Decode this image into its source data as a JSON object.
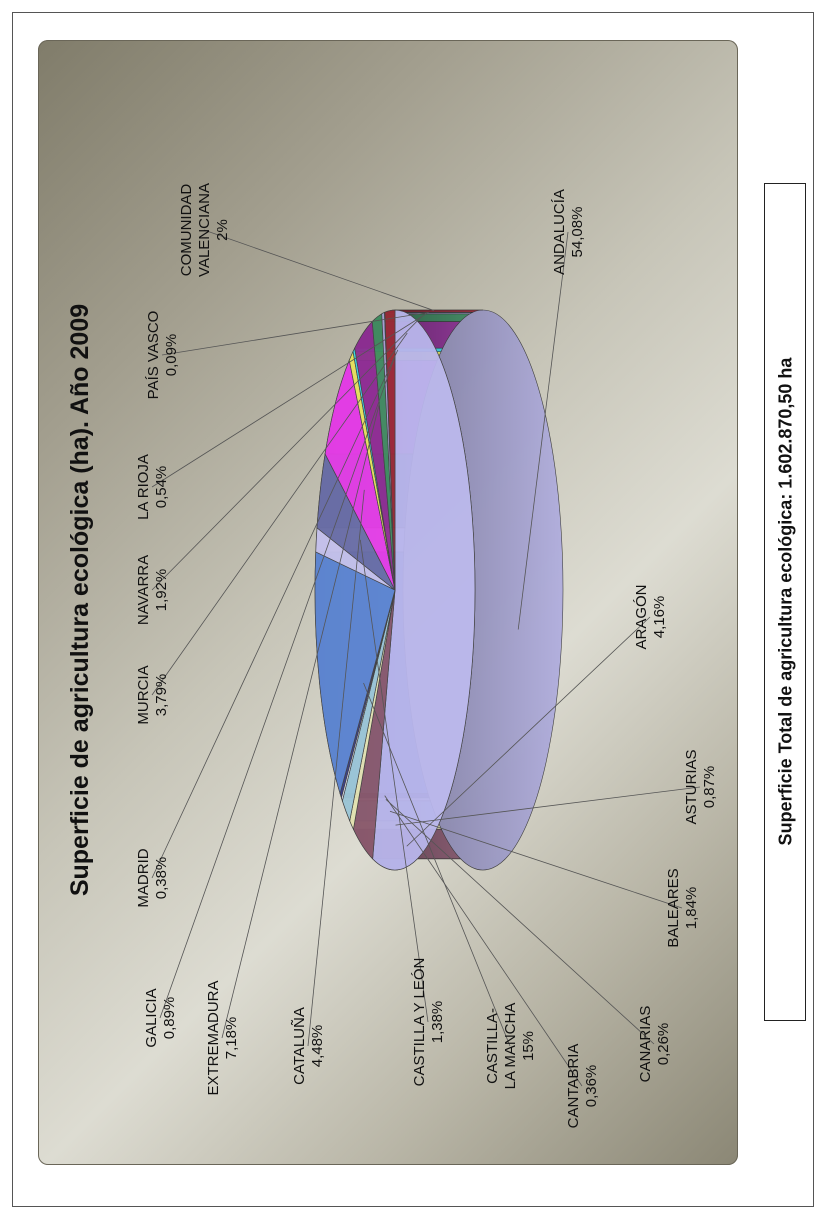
{
  "chart_data": {
    "type": "pie",
    "title": "Superficie de agricultura ecológica (ha). Año 2009",
    "slices": [
      {
        "label": [
          "ANDALUCÍA"
        ],
        "pct": "54,08%",
        "value": 54.08,
        "color": "#b9b6ec"
      },
      {
        "label": [
          "ARAGÓN"
        ],
        "pct": "4,16%",
        "value": 4.16,
        "color": "#8b5a6e"
      },
      {
        "label": [
          "ASTURIAS"
        ],
        "pct": "0,87%",
        "value": 0.87,
        "color": "#e8e6b4"
      },
      {
        "label": [
          "BALEARES"
        ],
        "pct": "1,84%",
        "value": 1.84,
        "color": "#9fc9d9"
      },
      {
        "label": [
          "CANARIAS"
        ],
        "pct": "0,26%",
        "value": 0.26,
        "color": "#e7e5f3"
      },
      {
        "label": [
          "CANTABRIA"
        ],
        "pct": "0,36%",
        "value": 0.36,
        "color": "#3b3f88"
      },
      {
        "label": [
          "CASTILLA-",
          "LA MANCHA"
        ],
        "pct": "15%",
        "value": 15.0,
        "color": "#5f87d3"
      },
      {
        "label": [
          "CASTILLA Y LEÓN"
        ],
        "pct": "1,38%",
        "value": 1.38,
        "color": "#c8c4ee"
      },
      {
        "label": [
          "CATALUÑA"
        ],
        "pct": "4,48%",
        "value": 4.48,
        "color": "#6b6fa8"
      },
      {
        "label": [
          "EXTREMADURA"
        ],
        "pct": "7,18%",
        "value": 7.18,
        "color": "#e63ee8"
      },
      {
        "label": [
          "GALICIA"
        ],
        "pct": "0,89%",
        "value": 0.89,
        "color": "#e8e85c"
      },
      {
        "label": [
          "MADRID"
        ],
        "pct": "0,38%",
        "value": 0.38,
        "color": "#38d8e8"
      },
      {
        "label": [
          "MURCIA"
        ],
        "pct": "3,79%",
        "value": 3.79,
        "color": "#8e2f93"
      },
      {
        "label": [
          "NAVARRA"
        ],
        "pct": "1,92%",
        "value": 1.92,
        "color": "#3f8f60"
      },
      {
        "label": [
          "LA RIOJA"
        ],
        "pct": "0,54%",
        "value": 0.54,
        "color": "#a8a6d8"
      },
      {
        "label": [
          "PAÍS VASCO"
        ],
        "pct": "0,09%",
        "value": 0.09,
        "color": "#c7a5a5"
      },
      {
        "label": [
          "COMUNIDAD",
          "VALENCIANA"
        ],
        "pct": "2%",
        "value": 2.0,
        "color": "#9a2a36"
      }
    ]
  },
  "footer": {
    "total_text": "Superficie Total de agricultura ecológica: 1.602.870,50 ha"
  }
}
